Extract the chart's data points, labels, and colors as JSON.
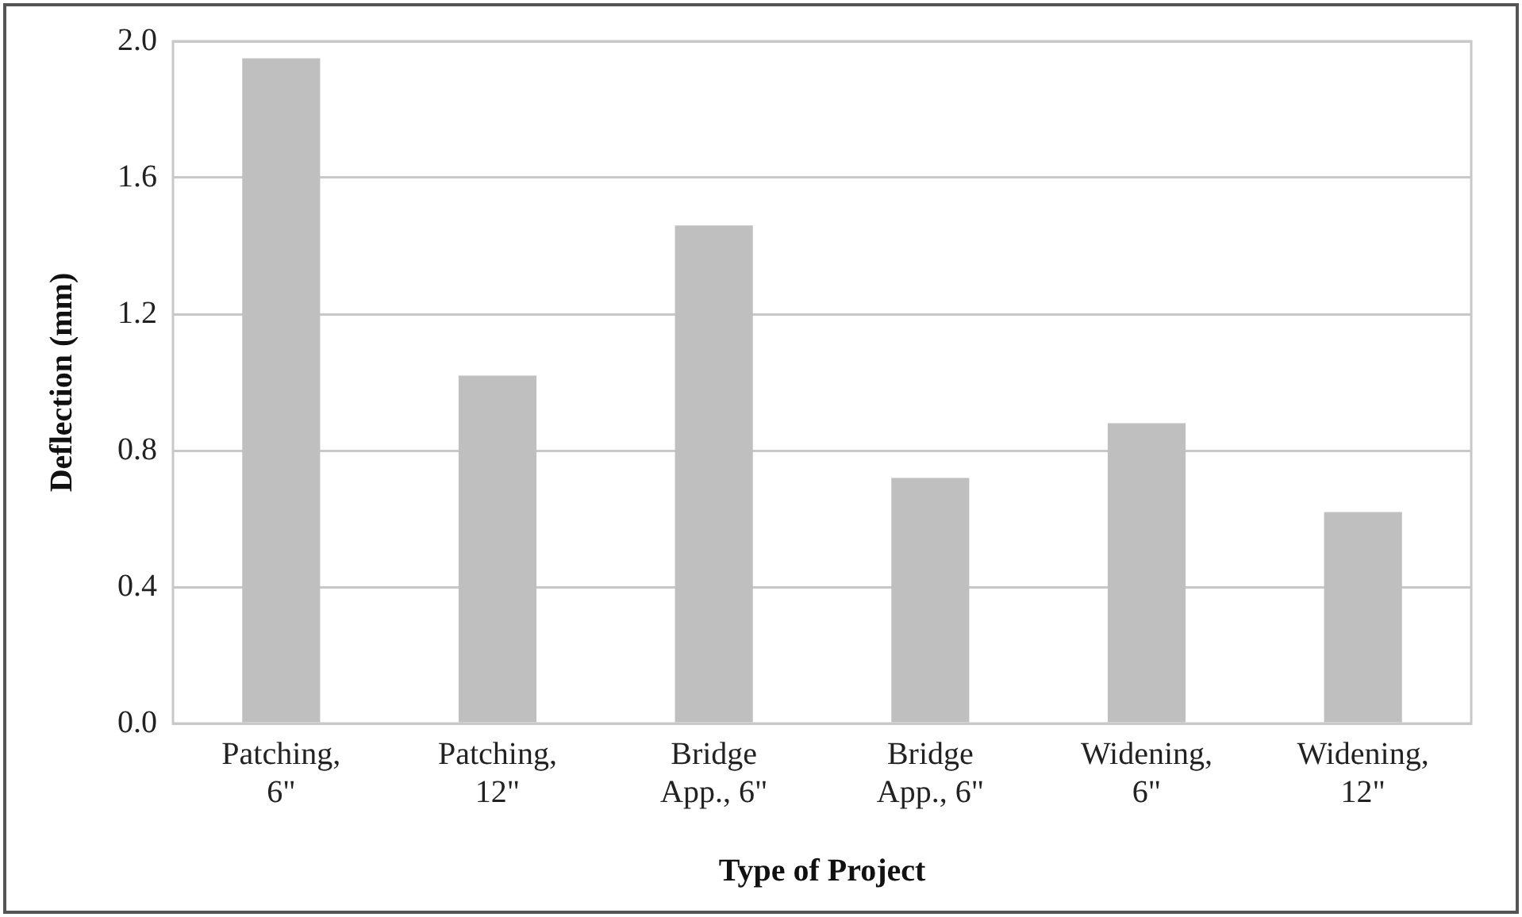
{
  "chart_data": {
    "type": "bar",
    "xlabel": "Type of Project",
    "ylabel": "Deflection (mm)",
    "categories": [
      "Patching,\n6\"",
      "Patching,\n12\"",
      "Bridge\nApp., 6\"",
      "Bridge\nApp., 6\"",
      "Widening,\n6\"",
      "Widening,\n12\""
    ],
    "values": [
      1.95,
      1.02,
      1.46,
      0.72,
      0.88,
      0.62
    ],
    "color": "#bfbfbf",
    "ylim": [
      0,
      2.0
    ],
    "yticks": [
      {
        "value": 0,
        "label": "0.0"
      },
      {
        "value": 0.4,
        "label": "0.4"
      },
      {
        "value": 0.8,
        "label": "0.8"
      },
      {
        "value": 1.2,
        "label": "1.2"
      },
      {
        "value": 1.6,
        "label": "1.6"
      },
      {
        "value": 2.0,
        "label": "2.0"
      }
    ],
    "grid": "y"
  }
}
